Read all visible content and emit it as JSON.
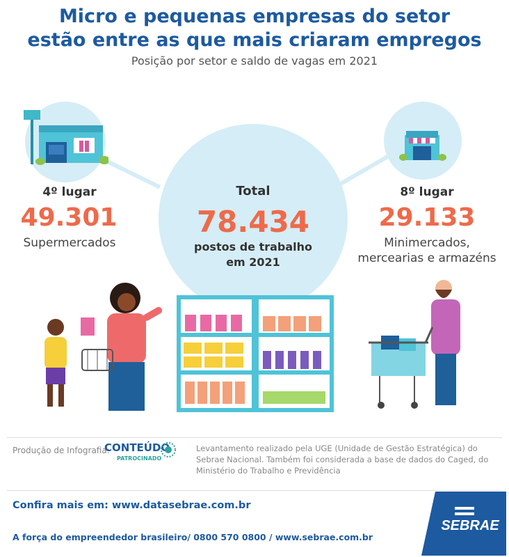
{
  "header": {
    "title_line1": "Micro e pequenas empresas do setor",
    "title_line2": "estão entre as que mais criaram empregos",
    "subtitle": "Posição por setor e saldo de vagas em 2021"
  },
  "left": {
    "rank": "4º lugar",
    "value": "49.301",
    "sector": "Supermercados"
  },
  "center": {
    "label": "Total",
    "value": "78.434",
    "desc_line1": "postos de trabalho",
    "desc_line2": "em 2021"
  },
  "right": {
    "rank": "8º lugar",
    "value": "29.133",
    "sector_line1": "Minimercados,",
    "sector_line2": "mercearias e armazéns"
  },
  "footer": {
    "production_label": "Produção de Infografia:",
    "logo_main": "CONTEÚDO",
    "logo_sub": "PATROCINADO",
    "source": "Levantamento realizado pela UGE (Unidade de Gestão Estratégica) do Sebrae Nacional. Também foi considerada a base de dados do Caged, do Ministério do Trabalho e Previdência",
    "confira": "Confira mais em: www.datasebrae.com.br",
    "tagline": "A força do empreendedor brasileiro/ 0800 570 0800 / www.sebrae.com.br",
    "brand": "SEBRAE"
  },
  "colors": {
    "title": "#1d5aa0",
    "accent": "#ee6a4a",
    "circle": "#d5edf6"
  }
}
